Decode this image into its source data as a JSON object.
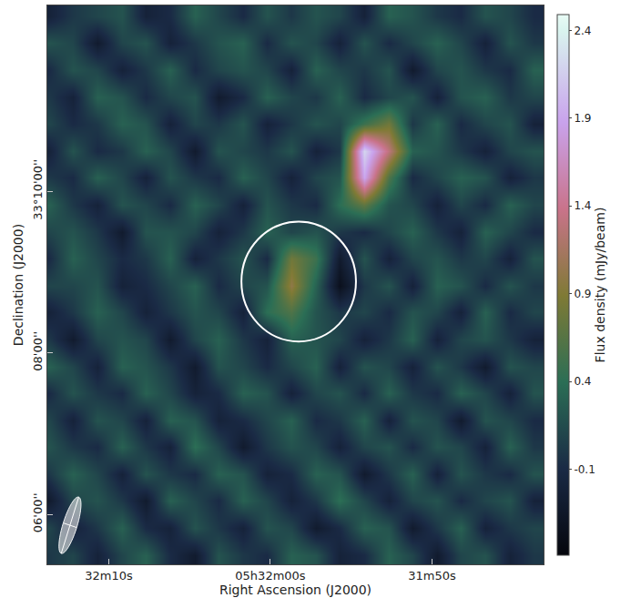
{
  "chart_data": {
    "type": "heatmap",
    "xlabel": "Right Ascension (J2000)",
    "ylabel": "Declination (J2000)",
    "colorbar_label": "Flux density (mJy/beam)",
    "xlim": [
      19933.8,
      19903.1
    ],
    "ylim": [
      119123,
      119538
    ],
    "xticks": [
      {
        "value": 19930,
        "label": "32m10s"
      },
      {
        "value": 19920,
        "label": "05h32m00s"
      },
      {
        "value": 19910,
        "label": "31m50s"
      }
    ],
    "yticks": [
      {
        "value": 119160,
        "label": "06'00''"
      },
      {
        "value": 119280,
        "label": "08'00''"
      },
      {
        "value": 119400,
        "label": "33°10'00''"
      }
    ],
    "zlim": [
      -0.59,
      2.49
    ],
    "zticks": [
      -0.1,
      0.4,
      0.9,
      1.4,
      1.9,
      2.4
    ],
    "x": [
      19903.7,
      19905.2,
      19906.7,
      19908.2,
      19909.7,
      19911.2,
      19912.7,
      19914.2,
      19915.7,
      19917.2,
      19918.7,
      19920.2,
      19921.7,
      19923.2,
      19924.7,
      19926.2,
      19927.7,
      19929.2,
      19930.7,
      19932.2,
      19933.7
    ],
    "y": [
      119130,
      119150,
      119170,
      119190,
      119210,
      119230,
      119250,
      119270,
      119290,
      119310,
      119330,
      119350,
      119370,
      119390,
      119410,
      119430,
      119450,
      119470,
      119490,
      119510,
      119530
    ],
    "z": [
      [
        0.0,
        -0.2,
        0.2,
        0.1,
        -0.3,
        0.1,
        0.3,
        -0.1,
        -0.2,
        0.2,
        0.3,
        -0.1,
        0.0,
        0.2,
        -0.3,
        -0.1,
        0.3,
        0.1,
        -0.2,
        0.1,
        0.0
      ],
      [
        0.1,
        0.0,
        -0.2,
        0.3,
        0.0,
        -0.3,
        0.2,
        0.3,
        -0.1,
        -0.3,
        0.1,
        0.2,
        -0.2,
        0.0,
        0.2,
        -0.2,
        -0.1,
        0.3,
        0.0,
        -0.2,
        0.1
      ],
      [
        -0.2,
        0.2,
        0.1,
        -0.1,
        0.2,
        0.1,
        -0.2,
        0.1,
        0.4,
        0.0,
        -0.2,
        0.1,
        0.3,
        -0.1,
        0.1,
        0.3,
        -0.3,
        0.0,
        0.2,
        0.1,
        -0.3
      ],
      [
        0.2,
        -0.1,
        0.0,
        0.2,
        -0.2,
        0.3,
        0.0,
        -0.3,
        0.2,
        0.3,
        -0.1,
        -0.2,
        0.2,
        0.3,
        -0.1,
        0.0,
        0.2,
        -0.2,
        0.1,
        0.3,
        0.0
      ],
      [
        0.0,
        0.3,
        -0.2,
        0.1,
        0.2,
        -0.1,
        0.2,
        0.1,
        -0.2,
        0.1,
        0.2,
        0.0,
        -0.3,
        0.1,
        0.4,
        -0.2,
        0.0,
        0.3,
        -0.1,
        0.0,
        0.2
      ],
      [
        -0.1,
        0.1,
        0.2,
        -0.3,
        0.1,
        0.2,
        -0.2,
        0.3,
        0.0,
        -0.1,
        0.3,
        0.1,
        -0.1,
        -0.2,
        0.2,
        0.3,
        -0.2,
        0.1,
        0.2,
        -0.2,
        0.1
      ],
      [
        0.2,
        -0.2,
        0.1,
        0.3,
        -0.1,
        0.0,
        0.3,
        -0.1,
        0.2,
        0.1,
        -0.2,
        0.2,
        0.3,
        -0.1,
        -0.2,
        0.1,
        0.3,
        -0.1,
        0.0,
        0.2,
        -0.1
      ],
      [
        0.1,
        0.2,
        -0.3,
        0.0,
        0.2,
        -0.2,
        0.1,
        0.2,
        -0.2,
        0.3,
        0.1,
        -0.1,
        0.1,
        0.2,
        -0.3,
        0.0,
        0.2,
        0.3,
        -0.2,
        0.1,
        0.3
      ],
      [
        -0.2,
        0.0,
        0.2,
        0.1,
        -0.2,
        0.3,
        0.0,
        -0.2,
        0.1,
        0.2,
        0.3,
        -0.2,
        0.0,
        0.3,
        0.1,
        -0.3,
        0.1,
        0.2,
        0.1,
        -0.3,
        0.0
      ],
      [
        0.1,
        -0.1,
        0.3,
        -0.2,
        0.1,
        0.2,
        -0.1,
        0.1,
        0.0,
        0.2,
        0.6,
        0.4,
        -0.2,
        0.1,
        0.2,
        0.0,
        -0.2,
        0.1,
        0.3,
        0.0,
        -0.2
      ],
      [
        0.0,
        0.2,
        -0.1,
        0.2,
        0.3,
        -0.2,
        0.2,
        0.0,
        -0.45,
        0.3,
        1.0,
        0.2,
        0.1,
        -0.1,
        0.3,
        0.1,
        -0.1,
        -0.2,
        0.2,
        0.1,
        0.1
      ],
      [
        0.2,
        -0.2,
        0.1,
        0.0,
        0.2,
        0.1,
        -0.2,
        0.2,
        -0.3,
        0.5,
        0.8,
        -0.1,
        0.2,
        0.0,
        -0.2,
        0.3,
        0.0,
        -0.1,
        0.1,
        0.3,
        -0.1
      ],
      [
        -0.1,
        0.1,
        0.3,
        -0.2,
        0.0,
        0.3,
        0.1,
        -0.1,
        0.0,
        0.2,
        0.1,
        0.3,
        0.0,
        -0.2,
        0.1,
        0.2,
        0.2,
        -0.3,
        0.0,
        0.2,
        0.1
      ],
      [
        0.1,
        0.3,
        -0.1,
        0.1,
        -0.2,
        0.1,
        0.2,
        0.7,
        0.4,
        -0.1,
        0.0,
        0.2,
        -0.2,
        0.1,
        0.3,
        -0.1,
        0.1,
        0.2,
        -0.2,
        0.0,
        0.3
      ],
      [
        0.0,
        -0.2,
        0.2,
        0.3,
        0.1,
        -0.1,
        0.6,
        1.9,
        0.2,
        0.1,
        -0.2,
        0.1,
        0.3,
        -0.1,
        0.0,
        0.2,
        -0.2,
        0.1,
        0.3,
        -0.1,
        0.0
      ],
      [
        0.2,
        0.1,
        -0.2,
        0.0,
        0.2,
        0.3,
        1.3,
        2.2,
        0.0,
        -0.2,
        0.2,
        0.0,
        0.1,
        0.2,
        -0.3,
        0.1,
        0.3,
        0.0,
        -0.1,
        0.2,
        -0.2
      ],
      [
        -0.2,
        0.2,
        0.1,
        -0.1,
        0.3,
        0.0,
        0.8,
        0.5,
        0.1,
        0.2,
        0.0,
        -0.2,
        0.2,
        0.0,
        0.1,
        -0.2,
        0.2,
        0.3,
        0.0,
        -0.1,
        0.1
      ],
      [
        0.1,
        0.0,
        0.3,
        0.2,
        -0.2,
        0.2,
        0.1,
        -0.1,
        0.3,
        0.0,
        0.1,
        0.3,
        -0.1,
        -0.3,
        0.2,
        0.1,
        -0.1,
        0.2,
        0.3,
        -0.2,
        0.0
      ],
      [
        0.3,
        -0.1,
        0.0,
        0.2,
        0.1,
        -0.3,
        0.2,
        0.0,
        0.1,
        0.3,
        -0.2,
        0.1,
        0.2,
        0.1,
        -0.1,
        0.3,
        0.0,
        -0.2,
        0.1,
        0.2,
        -0.1
      ],
      [
        0.0,
        0.2,
        -0.2,
        0.1,
        0.3,
        0.1,
        -0.1,
        0.2,
        -0.2,
        0.1,
        0.2,
        -0.1,
        0.3,
        0.2,
        0.0,
        -0.2,
        0.2,
        0.1,
        -0.3,
        0.1,
        0.2
      ],
      [
        -0.1,
        0.1,
        0.2,
        -0.1,
        0.0,
        0.2,
        0.3,
        -0.2,
        0.1,
        0.2,
        0.0,
        0.2,
        -0.1,
        0.1,
        0.3,
        -0.1,
        -0.2,
        0.2,
        0.1,
        0.0,
        -0.2
      ]
    ],
    "circle": {
      "ra": 19918.25,
      "dec": 119333,
      "radius": 44.5
    },
    "beam": {
      "ra": 19932.4,
      "dec": 119152,
      "major": 44,
      "minor": 11,
      "pa": -18
    }
  }
}
